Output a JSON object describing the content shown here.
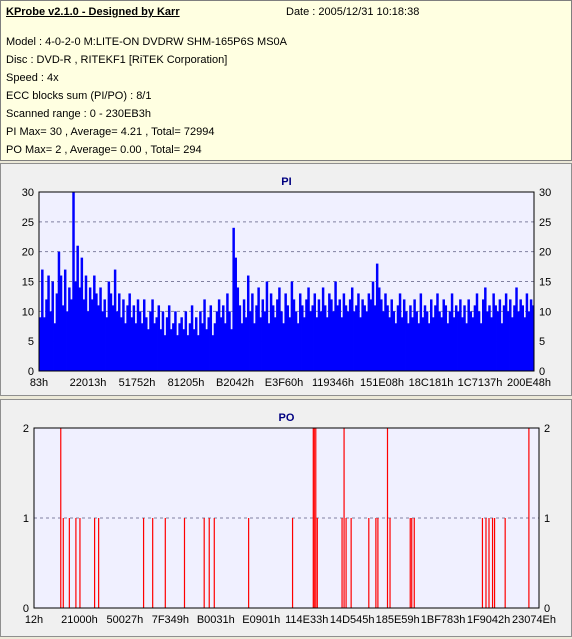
{
  "header": {
    "title": "KProbe v2.1.0 - Designed by Karr",
    "date": "Date : 2005/12/31 10:18:38",
    "lines": [
      "Model : 4-0-2-0 M:LITE-ON DVDRW SHM-165P6S MS0A",
      "Disc : DVD-R , RITEKF1 [RiTEK Corporation]",
      "Speed : 4x",
      "ECC blocks sum (PI/PO) : 8/1",
      "Scanned range : 0 - 230EB3h",
      "PI Max= 30 , Average= 4.21 , Total= 72994",
      "PO Max= 2 , Average= 0.00 , Total= 294"
    ]
  },
  "colors": {
    "pi_fill": "#0000ff",
    "po_bar": "#ff0000",
    "plot_bg": "#f0f0ff",
    "title_color": "#000080"
  },
  "chart_data": [
    {
      "type": "area",
      "title": "PI",
      "ylim": [
        0,
        30
      ],
      "yticks": [
        0,
        5,
        10,
        15,
        20,
        25,
        30
      ],
      "xticks": [
        "83h",
        "22013h",
        "51752h",
        "81205h",
        "B2042h",
        "E3F60h",
        "119346h",
        "151E08h",
        "18C181h",
        "1C7137h",
        "200E48h"
      ],
      "x_range": [
        "0h",
        "230EB3h"
      ],
      "grid": true,
      "series": [
        {
          "values": [
            9,
            17,
            9,
            12,
            16,
            10,
            15,
            8,
            13,
            20,
            16,
            11,
            17,
            10,
            14,
            12,
            30,
            15,
            21,
            14,
            19,
            12,
            16,
            10,
            14,
            12,
            16,
            13,
            11,
            14,
            10,
            12,
            9,
            15,
            13,
            11,
            17,
            10,
            13,
            9,
            12,
            8,
            11,
            13,
            9,
            11,
            8,
            12,
            10,
            8,
            12,
            9,
            7,
            10,
            12,
            8,
            9,
            11,
            7,
            10,
            6,
            9,
            11,
            7,
            8,
            10,
            6,
            8,
            9,
            7,
            10,
            6,
            8,
            11,
            7,
            9,
            6,
            10,
            8,
            12,
            7,
            9,
            11,
            6,
            8,
            10,
            12,
            9,
            11,
            8,
            13,
            10,
            7,
            24,
            19,
            14,
            11,
            8,
            12,
            9,
            16,
            10,
            13,
            8,
            11,
            14,
            9,
            12,
            10,
            15,
            8,
            13,
            11,
            9,
            12,
            14,
            10,
            8,
            13,
            11,
            9,
            15,
            12,
            10,
            8,
            13,
            11,
            9,
            12,
            14,
            10,
            11,
            13,
            9,
            12,
            10,
            14,
            11,
            9,
            13,
            12,
            10,
            15,
            11,
            12,
            9,
            13,
            11,
            10,
            12,
            14,
            10,
            11,
            13,
            9,
            12,
            11,
            10,
            13,
            12,
            15,
            11,
            18,
            14,
            12,
            10,
            13,
            11,
            9,
            12,
            10,
            8,
            11,
            13,
            9,
            12,
            10,
            8,
            11,
            9,
            12,
            10,
            8,
            13,
            9,
            11,
            10,
            8,
            12,
            9,
            11,
            13,
            10,
            9,
            12,
            11,
            8,
            10,
            13,
            9,
            11,
            10,
            12,
            9,
            11,
            8,
            12,
            10,
            9,
            11,
            13,
            10,
            8,
            12,
            14,
            10,
            11,
            9,
            13,
            11,
            10,
            12,
            8,
            11,
            13,
            10,
            12,
            9,
            11,
            14,
            10,
            12,
            11,
            9,
            13,
            10,
            12,
            11
          ]
        }
      ]
    },
    {
      "type": "bar",
      "title": "PO",
      "ylim": [
        0,
        2
      ],
      "yticks": [
        0,
        1,
        2
      ],
      "xticks": [
        "12h",
        "21000h",
        "50027h",
        "7F349h",
        "B0031h",
        "E0901h",
        "114E33h",
        "14D545h",
        "185E59h",
        "1BF783h",
        "1F9042h",
        "23074Eh"
      ],
      "x_range": [
        "0h",
        "230EB3h"
      ],
      "grid": true,
      "events": [
        {
          "pos": 0.053,
          "value": 2
        },
        {
          "pos": 0.058,
          "value": 1
        },
        {
          "pos": 0.07,
          "value": 1
        },
        {
          "pos": 0.083,
          "value": 1
        },
        {
          "pos": 0.091,
          "value": 1
        },
        {
          "pos": 0.12,
          "value": 1
        },
        {
          "pos": 0.128,
          "value": 1
        },
        {
          "pos": 0.217,
          "value": 1
        },
        {
          "pos": 0.235,
          "value": 1
        },
        {
          "pos": 0.26,
          "value": 1
        },
        {
          "pos": 0.298,
          "value": 1
        },
        {
          "pos": 0.337,
          "value": 1
        },
        {
          "pos": 0.347,
          "value": 1
        },
        {
          "pos": 0.357,
          "value": 1
        },
        {
          "pos": 0.425,
          "value": 1
        },
        {
          "pos": 0.512,
          "value": 1
        },
        {
          "pos": 0.553,
          "value": 2
        },
        {
          "pos": 0.555,
          "value": 2
        },
        {
          "pos": 0.558,
          "value": 2
        },
        {
          "pos": 0.561,
          "value": 1
        },
        {
          "pos": 0.61,
          "value": 1
        },
        {
          "pos": 0.614,
          "value": 2
        },
        {
          "pos": 0.618,
          "value": 1
        },
        {
          "pos": 0.628,
          "value": 1
        },
        {
          "pos": 0.663,
          "value": 1
        },
        {
          "pos": 0.677,
          "value": 1
        },
        {
          "pos": 0.681,
          "value": 1
        },
        {
          "pos": 0.7,
          "value": 2
        },
        {
          "pos": 0.705,
          "value": 1
        },
        {
          "pos": 0.745,
          "value": 1
        },
        {
          "pos": 0.748,
          "value": 1
        },
        {
          "pos": 0.753,
          "value": 1
        },
        {
          "pos": 0.888,
          "value": 1
        },
        {
          "pos": 0.895,
          "value": 1
        },
        {
          "pos": 0.901,
          "value": 1
        },
        {
          "pos": 0.908,
          "value": 1
        },
        {
          "pos": 0.912,
          "value": 1
        },
        {
          "pos": 0.933,
          "value": 1
        },
        {
          "pos": 0.98,
          "value": 2
        }
      ]
    }
  ]
}
